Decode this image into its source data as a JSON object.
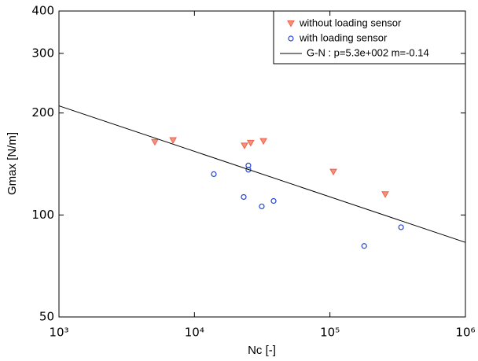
{
  "chart_data": {
    "type": "scatter",
    "x_label": "Nc [-]",
    "y_label": "Gmax [N/m]",
    "xscale": "log",
    "yscale": "log",
    "xlim": [
      1000,
      1000000
    ],
    "ylim": [
      50,
      400
    ],
    "xticks": [
      {
        "value": 1000,
        "label": "10³"
      },
      {
        "value": 10000,
        "label": "10⁴"
      },
      {
        "value": 100000,
        "label": "10⁵"
      },
      {
        "value": 1000000,
        "label": "10⁶"
      }
    ],
    "yticks": [
      50,
      100,
      200,
      300,
      400
    ],
    "legend": "upper right",
    "series": [
      {
        "name": "without loading sensor",
        "color": "#f0624a",
        "marker": "triangle",
        "x": [
          5100,
          6950,
          23400,
          26000,
          32300,
          106000,
          256000
        ],
        "values": [
          164,
          166,
          160,
          163,
          165,
          134,
          115
        ]
      },
      {
        "name": "with loading sensor",
        "color": "#2346d6",
        "marker": "circle",
        "x": [
          13900,
          25000,
          25000,
          23100,
          31400,
          38400,
          179000,
          335000
        ],
        "values": [
          132,
          140,
          136,
          113,
          106,
          110,
          81,
          92
        ]
      },
      {
        "name": "G-N : p=5.3e+002 m=-0.14",
        "color": "#000000",
        "marker": "line",
        "x": [
          1000,
          1000000
        ],
        "values": [
          210,
          83
        ]
      }
    ]
  }
}
